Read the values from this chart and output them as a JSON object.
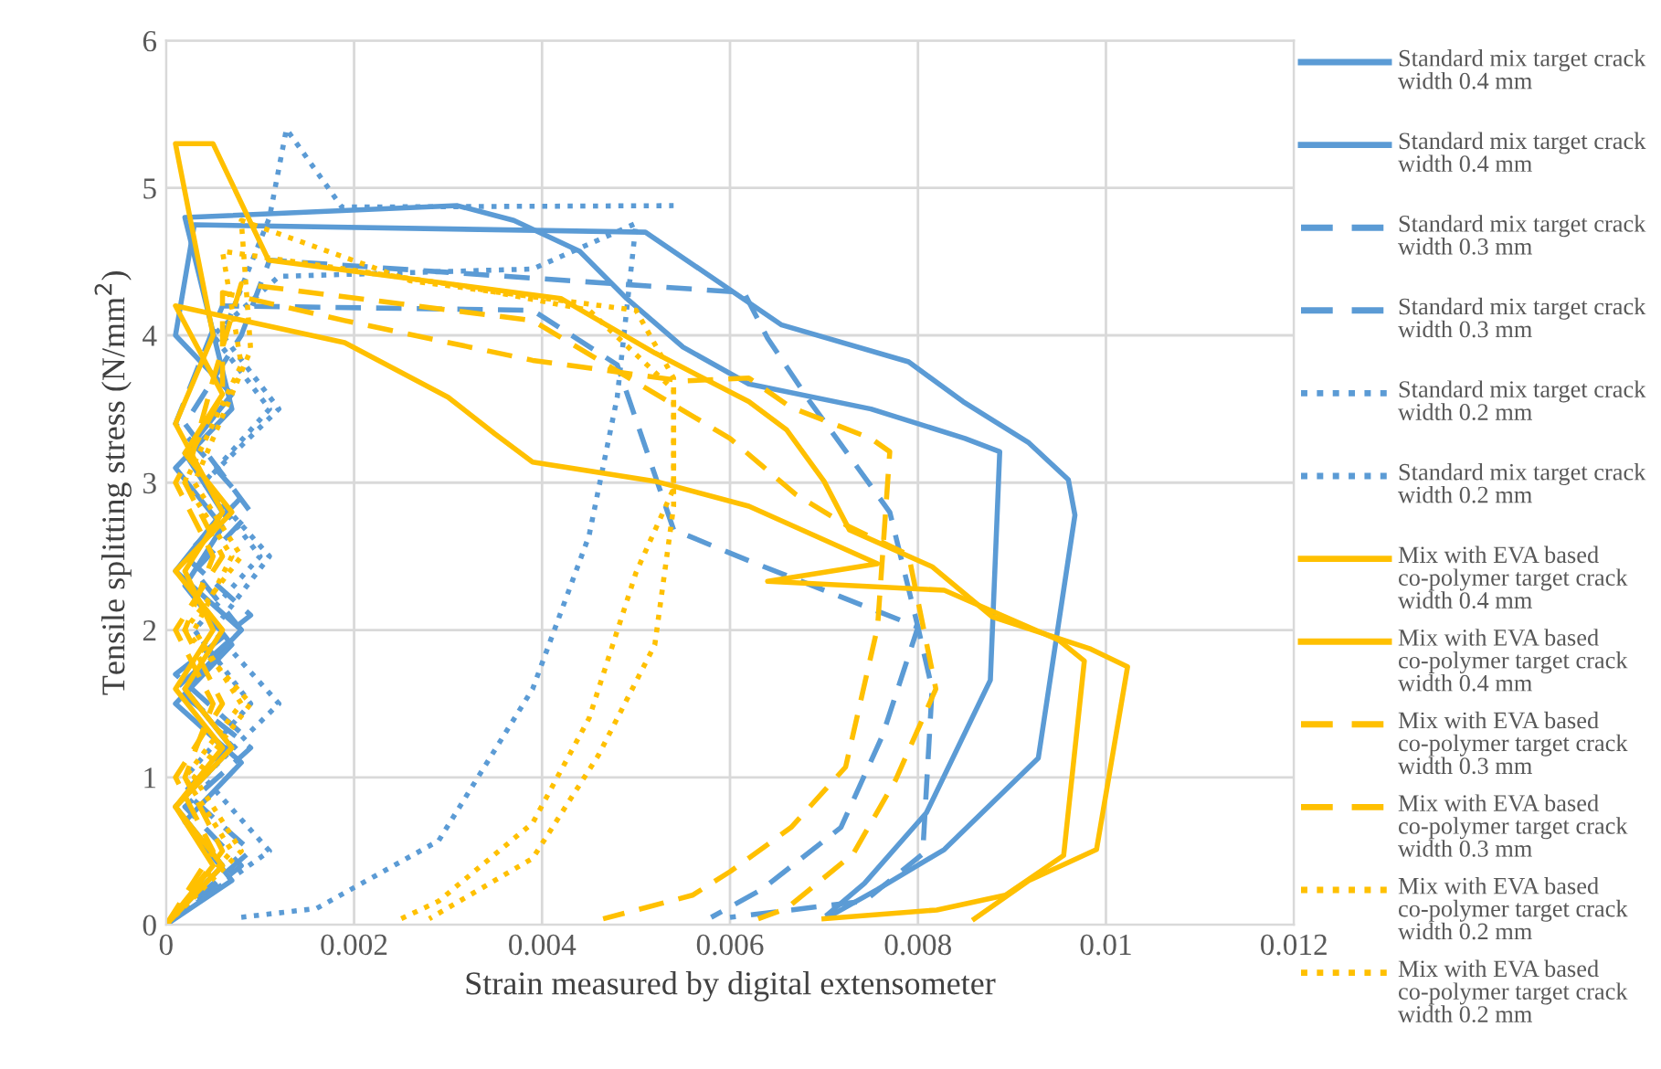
{
  "chart_data": {
    "type": "line",
    "xlabel": "Strain measured by digital extensometer",
    "ylabel": "Tensile splitting stress (N/mm$^{2}$)",
    "xlim": [
      0,
      0.012
    ],
    "xticks": [
      0,
      0.002,
      0.004,
      0.006,
      0.008,
      0.01,
      0.012
    ],
    "ylim": [
      0,
      6
    ],
    "yticks": [
      0,
      1,
      2,
      3,
      4,
      5,
      6
    ],
    "grid": true,
    "legend": "right",
    "marker": "none",
    "series": [
      {
        "name": "Standard mix target crack width 0.4 mm",
        "color": "#5b9bd5",
        "line_style": "solid",
        "x": [
          0,
          0.0006,
          0.0001,
          0.0007,
          0.0002,
          0.0008,
          0.0001,
          0.0006,
          0.0002,
          0.0007,
          0.0001,
          0.0003,
          0.0051,
          0.00655,
          0.0079,
          0.00848,
          0.00918,
          0.0096,
          0.00967,
          0.00928,
          0.00828,
          0.00757,
          0.00704
        ],
        "values": [
          0,
          0.4,
          0.8,
          1.2,
          1.6,
          2.0,
          2.4,
          2.8,
          3.2,
          3.6,
          4.0,
          4.75,
          4.7,
          4.07,
          3.82,
          3.55,
          3.27,
          3.02,
          2.78,
          1.13,
          0.51,
          0.24,
          0.05
        ]
      },
      {
        "name": "Standard mix target crack width 0.4 mm",
        "color": "#5b9bd5",
        "line_style": "solid",
        "x": [
          0,
          0.0007,
          0.0002,
          0.0008,
          0.0001,
          0.0007,
          0.0002,
          0.0006,
          0.0001,
          0.0007,
          0.0002,
          0.0031,
          0.0037,
          0.0044,
          0.0049,
          0.0055,
          0.0062,
          0.0075,
          0.0085,
          0.00887,
          0.00877,
          0.00809,
          0.00743,
          0.00704
        ],
        "values": [
          0,
          0.3,
          0.7,
          1.1,
          1.5,
          1.9,
          2.3,
          2.7,
          3.1,
          3.5,
          4.8,
          4.88,
          4.78,
          4.57,
          4.25,
          3.92,
          3.67,
          3.5,
          3.3,
          3.21,
          1.66,
          0.76,
          0.28,
          0.07
        ]
      },
      {
        "name": "Standard mix target crack width 0.3 mm",
        "color": "#5b9bd5",
        "line_style": "dashed",
        "x": [
          0,
          0.0008,
          0.0002,
          0.0009,
          0.0001,
          0.0008,
          0.0003,
          0.0009,
          0.0002,
          0.0008,
          0.0011,
          0.00615,
          0.0064,
          0.00685,
          0.0077,
          0.008,
          0.00815,
          0.00805,
          0.00743,
          0.006
        ],
        "values": [
          0,
          0.4,
          0.8,
          1.2,
          1.6,
          2.0,
          2.4,
          2.8,
          3.4,
          4.0,
          4.51,
          4.29,
          3.98,
          3.55,
          2.8,
          2.02,
          1.6,
          0.48,
          0.16,
          0.05
        ]
      },
      {
        "name": "Standard mix target crack width 0.3 mm",
        "color": "#5b9bd5",
        "line_style": "dashed",
        "x": [
          0,
          0.0009,
          0.0002,
          0.0008,
          0.0001,
          0.0009,
          0.0002,
          0.0008,
          0.0001,
          0.0006,
          0.0039,
          0.0048,
          0.0054,
          0.0062,
          0.008,
          0.00762,
          0.00718,
          0.00634,
          0.0058
        ],
        "values": [
          0,
          0.5,
          0.9,
          1.3,
          1.7,
          2.1,
          2.5,
          2.9,
          3.4,
          4.2,
          4.17,
          3.8,
          2.68,
          2.47,
          2.02,
          1.28,
          0.66,
          0.24,
          0.05
        ]
      },
      {
        "name": "Standard mix target crack width 0.2 mm",
        "color": "#5b9bd5",
        "line_style": "dotted",
        "x": [
          0,
          0.0011,
          0.0004,
          0.0012,
          0.0005,
          0.0011,
          0.0004,
          0.0012,
          0.0006,
          0.0011,
          0.00128,
          0.00187,
          0.0054
        ],
        "values": [
          0,
          0.5,
          1.0,
          1.5,
          2.0,
          2.5,
          3.0,
          3.5,
          4.0,
          4.8,
          5.4,
          4.87,
          4.88
        ]
      },
      {
        "name": "Standard mix target crack width 0.2 mm",
        "color": "#5b9bd5",
        "line_style": "dotted",
        "x": [
          0.0008,
          0.0016,
          0.0029,
          0.0039,
          0.0045,
          0.0048,
          0.005,
          0.0039,
          0.0012,
          0.0005,
          0.0011,
          0.0004,
          0.001,
          0.0003,
          0.0009,
          0.0002
        ],
        "values": [
          0.05,
          0.11,
          0.57,
          1.6,
          2.64,
          3.58,
          4.76,
          4.45,
          4.4,
          4.0,
          3.5,
          3.0,
          2.5,
          2.0,
          1.5,
          1.0
        ]
      },
      {
        "name": "Mix with EVA based co-polymer target crack width 0.4 mm",
        "color": "#ffc000",
        "line_style": "solid",
        "x": [
          0,
          0.0005,
          0.0001,
          0.0006,
          0.0001,
          0.0005,
          0.0002,
          0.0006,
          0.0001,
          0.0005,
          0.0001,
          0.0005,
          0.00109,
          0.0042,
          0.0052,
          0.0062,
          0.0066,
          0.007,
          0.00727,
          0.00815,
          0.00879,
          0.00984,
          0.01023,
          0.0099,
          0.00918,
          0.0086
        ],
        "values": [
          0,
          0.4,
          0.8,
          1.2,
          1.6,
          2.0,
          2.4,
          2.8,
          3.4,
          4.0,
          5.3,
          5.3,
          4.51,
          4.25,
          3.88,
          3.55,
          3.36,
          3.01,
          2.68,
          2.43,
          2.09,
          1.87,
          1.75,
          0.51,
          0.3,
          0.04
        ]
      },
      {
        "name": "Mix with EVA based co-polymer target crack width 0.4 mm",
        "color": "#ffc000",
        "line_style": "solid",
        "x": [
          0,
          0.0006,
          0.0001,
          0.0007,
          0.0002,
          0.0006,
          0.0001,
          0.0007,
          0.0002,
          0.0006,
          0.0001,
          0.0019,
          0.003,
          0.0035,
          0.0039,
          0.0052,
          0.0062,
          0.00757,
          0.0064,
          0.00828,
          0.0095,
          0.00977,
          0.00955,
          0.00893,
          0.0082,
          0.007
        ],
        "values": [
          0,
          0.4,
          0.8,
          1.2,
          1.6,
          2.0,
          2.4,
          2.8,
          3.2,
          3.6,
          4.2,
          3.95,
          3.58,
          3.33,
          3.14,
          3.01,
          2.84,
          2.45,
          2.33,
          2.27,
          1.93,
          1.79,
          0.47,
          0.2,
          0.1,
          0.04
        ]
      },
      {
        "name": "Mix with EVA based co-polymer target crack width 0.3 mm",
        "color": "#ffc000",
        "line_style": "dashed",
        "x": [
          0,
          0.0005,
          0.0001,
          0.0006,
          0.0002,
          0.0005,
          0.0001,
          0.0006,
          0.0006,
          0.0019,
          0.0039,
          0.0055,
          0.0062,
          0.00665,
          0.0075,
          0.0077,
          0.00757,
          0.00723,
          0.00665,
          0.006,
          0.0056,
          0.00465
        ],
        "values": [
          0,
          0.5,
          1.0,
          1.5,
          2.0,
          2.5,
          3.0,
          3.6,
          4.29,
          4.1,
          3.83,
          3.69,
          3.71,
          3.51,
          3.3,
          3.21,
          2.02,
          1.07,
          0.66,
          0.36,
          0.2,
          0.04
        ]
      },
      {
        "name": "Mix with EVA based co-polymer target crack width 0.3 mm",
        "color": "#ffc000",
        "line_style": "dashed",
        "x": [
          0,
          0.0006,
          0.0002,
          0.0005,
          0.0001,
          0.0006,
          0.0002,
          0.0005,
          0.0008,
          0.0039,
          0.006,
          0.0067,
          0.00724,
          0.0079,
          0.00819,
          0.00776,
          0.00731,
          0.0066,
          0.0063
        ],
        "values": [
          0,
          0.5,
          1.0,
          1.5,
          2.0,
          2.5,
          3.0,
          3.7,
          4.35,
          4.1,
          3.3,
          2.92,
          2.71,
          2.51,
          1.6,
          0.98,
          0.48,
          0.11,
          0.04
        ]
      },
      {
        "name": "Mix with EVA based co-polymer target crack width 0.2 mm",
        "color": "#ffc000",
        "line_style": "dotted",
        "x": [
          0,
          0.0007,
          0.0002,
          0.0008,
          0.0003,
          0.0007,
          0.0002,
          0.0008,
          0.0006,
          0.0032,
          0.0045,
          0.0054,
          0.0054,
          0.005,
          0.0045,
          0.0039,
          0.0029,
          0.0025
        ],
        "values": [
          0,
          0.5,
          1.0,
          1.5,
          2.0,
          2.5,
          3.0,
          3.8,
          4.57,
          4.33,
          4.17,
          3.63,
          2.96,
          2.39,
          1.4,
          0.69,
          0.16,
          0.04
        ]
      },
      {
        "name": "Mix with EVA based co-polymer target crack width 0.2 mm",
        "color": "#ffc000",
        "line_style": "dotted",
        "x": [
          0,
          0.0008,
          0.0003,
          0.0009,
          0.0002,
          0.0008,
          0.0003,
          0.0009,
          0.0008,
          0.0026,
          0.005,
          0.0054,
          0.0054,
          0.0052,
          0.0046,
          0.0039,
          0.0028
        ],
        "values": [
          0,
          0.5,
          1.0,
          1.5,
          2.0,
          2.5,
          3.0,
          3.9,
          4.78,
          4.37,
          4.17,
          3.71,
          2.84,
          1.9,
          1.15,
          0.45,
          0.04
        ]
      }
    ]
  }
}
